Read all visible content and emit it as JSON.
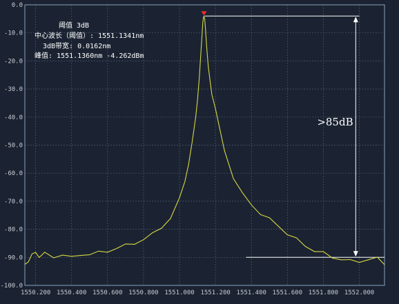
{
  "chart_data": {
    "type": "line",
    "title": "",
    "xlabel": "",
    "ylabel": "",
    "xlim": [
      1550.14,
      1552.14
    ],
    "ylim": [
      -100,
      0
    ],
    "x_ticks": [
      "1550.200",
      "1550.400",
      "1550.600",
      "1550.800",
      "1551.000",
      "1551.200",
      "1551.400",
      "1551.600",
      "1551.800",
      "1552.000"
    ],
    "x_tick_values": [
      1550.2,
      1550.4,
      1550.6,
      1550.8,
      1551.0,
      1551.2,
      1551.4,
      1551.6,
      1551.8,
      1552.0
    ],
    "y_ticks": [
      "0.0",
      "-10.0",
      "-20.0",
      "-30.0",
      "-40.0",
      "-50.0",
      "-60.0",
      "-70.0",
      "-80.0",
      "-90.0",
      "-100.0"
    ],
    "y_tick_values": [
      0,
      -10,
      -20,
      -30,
      -40,
      -50,
      -60,
      -70,
      -80,
      -90,
      -100
    ],
    "grid": true,
    "colors": {
      "background": "#1b2332",
      "grid": "#4a5a72",
      "trace": "#d8d843",
      "marker": "#ff2a2a",
      "annotation": "#ffffff"
    },
    "series": [
      {
        "x": [
          1550.14,
          1550.16,
          1550.18,
          1550.2,
          1550.22,
          1550.25,
          1550.3,
          1550.35,
          1550.4,
          1550.45,
          1550.5,
          1550.55,
          1550.6,
          1550.65,
          1550.7,
          1550.75,
          1550.8,
          1550.85,
          1550.9,
          1550.95,
          1551.0,
          1551.03,
          1551.05,
          1551.07,
          1551.09,
          1551.1,
          1551.11,
          1551.12,
          1551.125,
          1551.13,
          1551.134,
          1551.136,
          1551.14,
          1551.145,
          1551.15,
          1551.16,
          1551.17,
          1551.18,
          1551.2,
          1551.22,
          1551.25,
          1551.28,
          1551.3,
          1551.35,
          1551.4,
          1551.45,
          1551.5,
          1551.55,
          1551.6,
          1551.65,
          1551.7,
          1551.75,
          1551.8,
          1551.85,
          1551.9,
          1551.95,
          1552.0,
          1552.05,
          1552.1,
          1552.14
        ],
        "y": [
          -92.5,
          -91.5,
          -90,
          -89,
          -90.5,
          -89.5,
          -90.5,
          -89,
          -90,
          -88.5,
          -88,
          -87.5,
          -87,
          -86,
          -85.5,
          -85,
          -84,
          -82.5,
          -80,
          -77,
          -70,
          -63,
          -57,
          -49,
          -40,
          -34,
          -26,
          -16,
          -11,
          -6,
          -4.3,
          -4.262,
          -5,
          -9,
          -14,
          -22,
          -27,
          -32,
          -37,
          -43,
          -52,
          -58,
          -62,
          -67,
          -71,
          -74.5,
          -77,
          -79.5,
          -82.5,
          -84.5,
          -86.5,
          -88,
          -88.5,
          -89.5,
          -90,
          -90.5,
          -90.5,
          -90,
          -90,
          -92
        ]
      }
    ],
    "annotations": {
      "threshold": "阈值  3dB",
      "center_wl": "中心波长（阈值）: 1551.1341nm",
      "bw_3db": "3dB带宽: 0.0162nm",
      "peak": "峰值: 1551.1360nm   -4.262dBm",
      "smsr": ">85dB"
    },
    "peak_marker": {
      "x": 1551.136,
      "y": -4.262
    },
    "reference_levels": {
      "top": -4,
      "bottom": -90,
      "top_line_x": [
        1551.136,
        1552.0
      ],
      "bottom_line_x": [
        1551.37,
        1552.14
      ],
      "arrow_x": 1551.98
    }
  }
}
